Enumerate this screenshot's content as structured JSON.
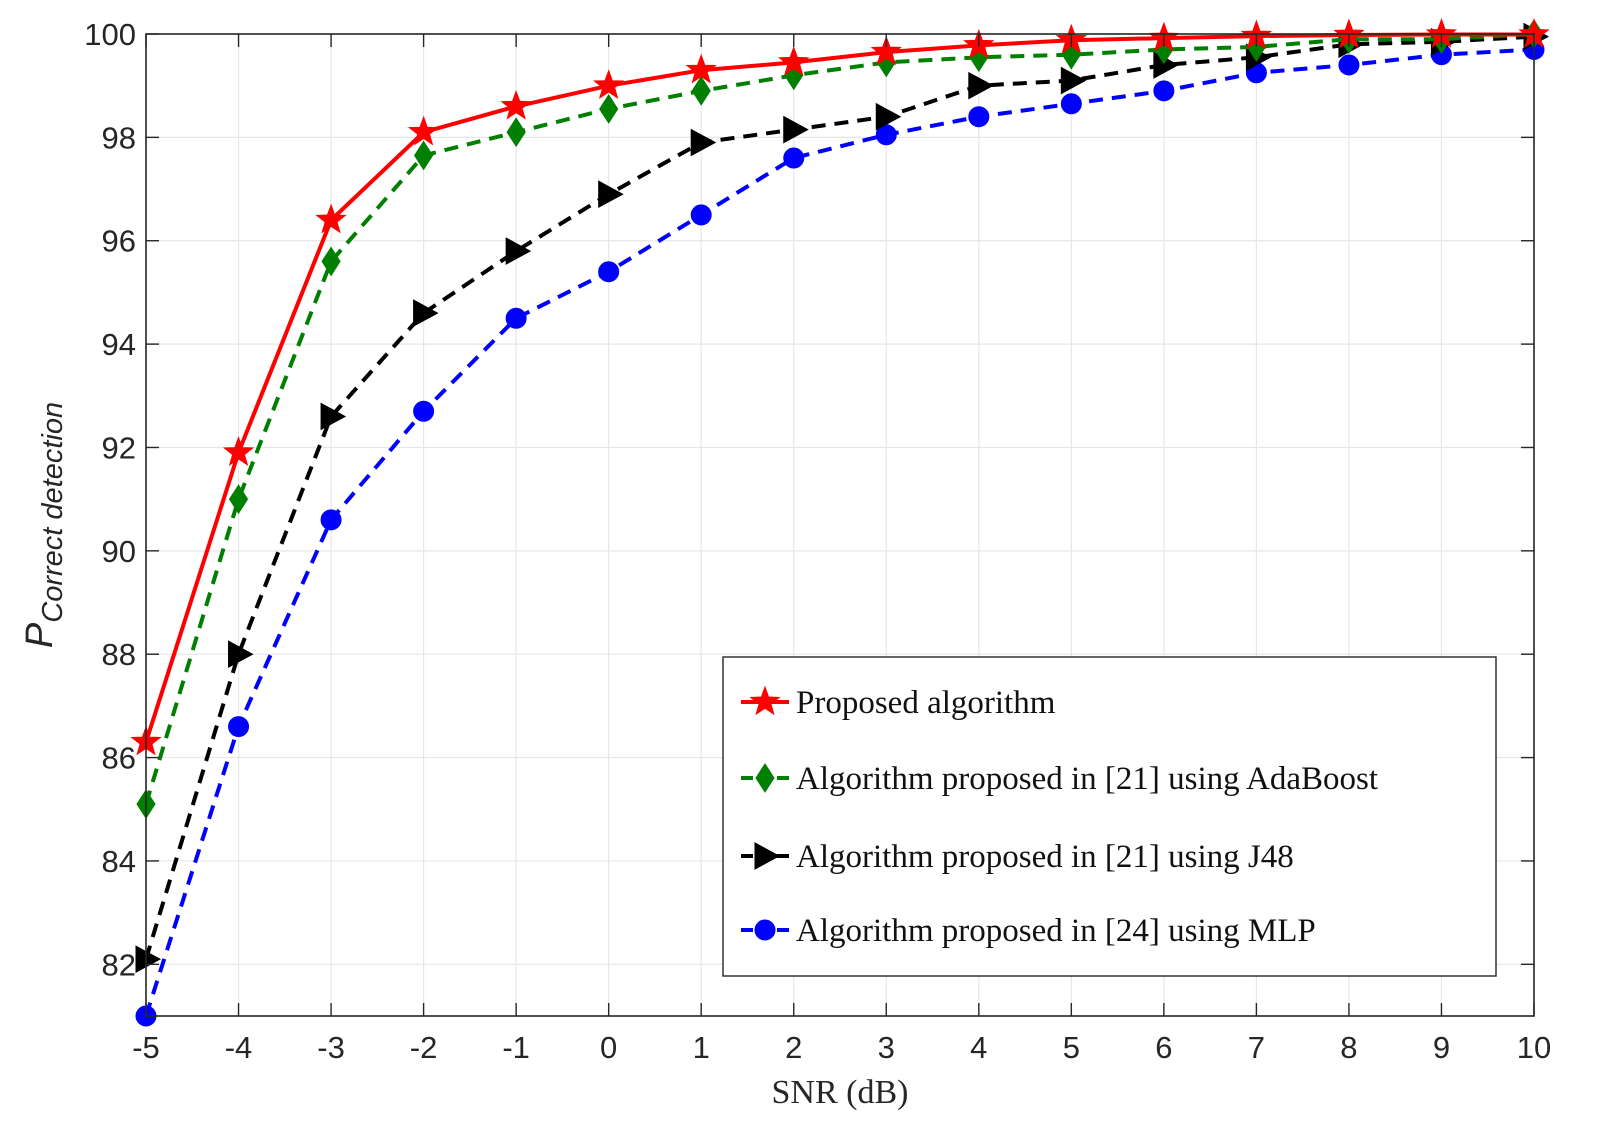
{
  "chart_data": {
    "type": "line",
    "title": "",
    "xlabel": "SNR (dB)",
    "ylabel": {
      "main": "P",
      "subscript": "Correct detection"
    },
    "xlim": [
      -5,
      10
    ],
    "ylim": [
      81,
      100
    ],
    "grid": true,
    "legend_position": "bottom-right",
    "x": [
      -5,
      -4,
      -3,
      -2,
      -1,
      0,
      1,
      2,
      3,
      4,
      5,
      6,
      7,
      8,
      9,
      10
    ],
    "xticks": [
      -5,
      -4,
      -3,
      -2,
      -1,
      0,
      1,
      2,
      3,
      4,
      5,
      6,
      7,
      8,
      9,
      10
    ],
    "xtick_labels": [
      "-5",
      "-4",
      "-3",
      "-2",
      "-1",
      "0",
      "1",
      "2",
      "3",
      "4",
      "5",
      "6",
      "7",
      "8",
      "9",
      "10"
    ],
    "yticks": [
      82,
      84,
      86,
      88,
      90,
      92,
      94,
      96,
      98,
      100
    ],
    "ytick_labels": [
      "82",
      "84",
      "86",
      "88",
      "90",
      "92",
      "94",
      "96",
      "98",
      "100"
    ],
    "series": [
      {
        "name": "Proposed algorithm",
        "color": "#ff0000",
        "line": "solid",
        "marker": "star",
        "values": [
          86.3,
          91.9,
          96.4,
          98.1,
          98.6,
          99.0,
          99.3,
          99.45,
          99.65,
          99.78,
          99.88,
          99.92,
          99.96,
          99.98,
          99.99,
          99.99
        ]
      },
      {
        "name": "Algorithm proposed in [21] using AdaBoost",
        "color": "#007f00",
        "line": "dashed",
        "marker": "diamond",
        "values": [
          85.1,
          91.0,
          95.6,
          97.65,
          98.1,
          98.55,
          98.9,
          99.2,
          99.45,
          99.55,
          99.6,
          99.7,
          99.75,
          99.9,
          99.9,
          100.0
        ]
      },
      {
        "name": "Algorithm proposed in [21] using J48",
        "color": "#000000",
        "line": "dashed",
        "marker": "triangle-right",
        "values": [
          82.1,
          88.0,
          92.6,
          94.6,
          95.8,
          96.9,
          97.9,
          98.15,
          98.4,
          99.0,
          99.1,
          99.4,
          99.55,
          99.8,
          99.85,
          99.95
        ]
      },
      {
        "name": "Algorithm proposed in [24] using MLP",
        "color": "#0000ff",
        "line": "dashed",
        "marker": "circle",
        "values": [
          81.0,
          86.6,
          90.6,
          92.7,
          94.5,
          95.4,
          96.5,
          97.6,
          98.05,
          98.4,
          98.65,
          98.9,
          99.25,
          99.4,
          99.6,
          99.7
        ]
      }
    ]
  }
}
